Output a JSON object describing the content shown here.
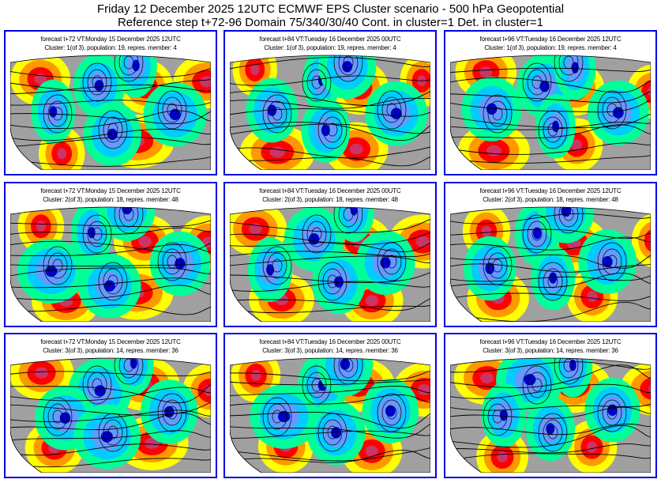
{
  "header": {
    "title": "Friday 12 December 2025 12UTC ECMWF EPS Cluster scenario - 500 hPa Geopotential",
    "subtitle": "Reference step t+72-96 Domain 75/340/30/40 Cont. in cluster=1 Det. in cluster=1"
  },
  "colors": {
    "panel_border": "#0000e6",
    "land": "#a0a0a0",
    "positive_anomaly": [
      "#ffff00",
      "#ff9900",
      "#ff0000",
      "#cc3366"
    ],
    "negative_anomaly": [
      "#00ff99",
      "#00ccff",
      "#6699ff",
      "#0000cc"
    ]
  },
  "panels": [
    {
      "forecast": "forecast t+72 VT:Monday 15 December 2025 12UTC",
      "cluster": "Cluster: 1(of 3), population: 19, repres. member: 4"
    },
    {
      "forecast": "forecast t+84 VT:Tuesday 16 December 2025 00UTC",
      "cluster": "Cluster: 1(of 3), population: 19, repres. member: 4"
    },
    {
      "forecast": "forecast t+96 VT:Tuesday 16 December 2025 12UTC",
      "cluster": "Cluster: 1(of 3), population: 19, repres. member: 4"
    },
    {
      "forecast": "forecast t+72 VT:Monday 15 December 2025 12UTC",
      "cluster": "Cluster: 2(of 3), population: 18, repres. member: 48"
    },
    {
      "forecast": "forecast t+84 VT:Tuesday 16 December 2025 00UTC",
      "cluster": "Cluster: 2(of 3), population: 18, repres. member: 48"
    },
    {
      "forecast": "forecast t+96 VT:Tuesday 16 December 2025 12UTC",
      "cluster": "Cluster: 2(of 3), population: 18, repres. member: 48"
    },
    {
      "forecast": "forecast t+72 VT:Monday 15 December 2025 12UTC",
      "cluster": "Cluster: 3(of 3), population: 14, repres. member: 36"
    },
    {
      "forecast": "forecast t+84 VT:Tuesday 16 December 2025 00UTC",
      "cluster": "Cluster: 3(of 3), population: 14, repres. member: 36"
    },
    {
      "forecast": "forecast t+96 VT:Tuesday 16 December 2025 12UTC",
      "cluster": "Cluster: 3(of 3), population: 14, repres. member: 36"
    }
  ]
}
